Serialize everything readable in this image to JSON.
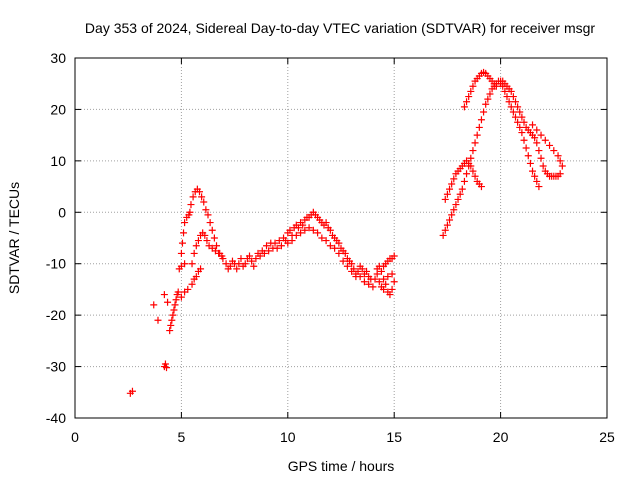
{
  "chart_data": {
    "type": "scatter",
    "title": "Day 353 of 2024, Sidereal Day-to-day VTEC variation (SDTVAR) for receiver msgr",
    "xlabel": "GPS time / hours",
    "ylabel": "SDTVAR / TECUs",
    "xlim": [
      0,
      25
    ],
    "ylim": [
      -40,
      30
    ],
    "xticks": [
      0,
      5,
      10,
      15,
      20,
      25
    ],
    "yticks": [
      -40,
      -30,
      -20,
      -10,
      0,
      10,
      20,
      30
    ],
    "grid": true,
    "marker": "+",
    "series": [
      {
        "name": "SDTVAR",
        "color": "#ff0000",
        "points": [
          [
            2.6,
            -35.2
          ],
          [
            2.7,
            -34.8
          ],
          [
            3.7,
            -18.0
          ],
          [
            3.9,
            -21.0
          ],
          [
            4.2,
            -30.0
          ],
          [
            4.25,
            -29.5
          ],
          [
            4.3,
            -30.2
          ],
          [
            4.2,
            -16.0
          ],
          [
            4.35,
            -17.5
          ],
          [
            4.45,
            -23.0
          ],
          [
            4.5,
            -22.0
          ],
          [
            4.55,
            -21.0
          ],
          [
            4.6,
            -20.0
          ],
          [
            4.65,
            -19.0
          ],
          [
            4.7,
            -18.0
          ],
          [
            4.75,
            -17.0
          ],
          [
            4.8,
            -16.0
          ],
          [
            4.85,
            -15.5
          ],
          [
            5.0,
            -16.5
          ],
          [
            5.15,
            -15.5
          ],
          [
            5.3,
            -15.0
          ],
          [
            4.9,
            -11.0
          ],
          [
            5.0,
            -10.5
          ],
          [
            5.15,
            -10.0
          ],
          [
            5.0,
            -8.0
          ],
          [
            5.05,
            -6.0
          ],
          [
            5.1,
            -4.0
          ],
          [
            5.15,
            -2.0
          ],
          [
            5.25,
            -1.0
          ],
          [
            5.35,
            -0.5
          ],
          [
            5.4,
            0.0
          ],
          [
            5.45,
            1.5
          ],
          [
            5.55,
            3.0
          ],
          [
            5.65,
            4.0
          ],
          [
            5.75,
            4.5
          ],
          [
            5.85,
            4.0
          ],
          [
            5.95,
            3.0
          ],
          [
            6.05,
            2.0
          ],
          [
            6.15,
            0.5
          ],
          [
            6.25,
            -0.5
          ],
          [
            6.35,
            -2.0
          ],
          [
            6.45,
            -3.5
          ],
          [
            6.55,
            -5.0
          ],
          [
            6.65,
            -6.5
          ],
          [
            6.8,
            -8.0
          ],
          [
            6.95,
            -9.0
          ],
          [
            5.5,
            -14.0
          ],
          [
            5.6,
            -13.0
          ],
          [
            5.7,
            -12.5
          ],
          [
            5.8,
            -11.5
          ],
          [
            5.9,
            -11.0
          ],
          [
            5.5,
            -10.0
          ],
          [
            5.6,
            -8.0
          ],
          [
            5.7,
            -6.5
          ],
          [
            5.8,
            -5.5
          ],
          [
            5.9,
            -4.5
          ],
          [
            6.0,
            -4.0
          ],
          [
            6.1,
            -4.5
          ],
          [
            6.2,
            -5.5
          ],
          [
            6.3,
            -6.5
          ],
          [
            6.45,
            -7.0
          ],
          [
            6.6,
            -7.5
          ],
          [
            6.75,
            -8.0
          ],
          [
            6.9,
            -8.5
          ],
          [
            7.1,
            -10.0
          ],
          [
            7.2,
            -11.0
          ],
          [
            7.3,
            -10.5
          ],
          [
            7.4,
            -9.5
          ],
          [
            7.5,
            -10.0
          ],
          [
            7.6,
            -11.0
          ],
          [
            7.7,
            -10.0
          ],
          [
            7.8,
            -9.0
          ],
          [
            7.9,
            -10.5
          ],
          [
            8.0,
            -10.0
          ],
          [
            8.1,
            -9.0
          ],
          [
            8.2,
            -8.5
          ],
          [
            8.3,
            -9.5
          ],
          [
            8.4,
            -10.5
          ],
          [
            8.5,
            -9.0
          ],
          [
            8.6,
            -8.0
          ],
          [
            8.7,
            -8.5
          ],
          [
            8.8,
            -7.5
          ],
          [
            8.9,
            -8.0
          ],
          [
            9.0,
            -6.5
          ],
          [
            9.1,
            -7.5
          ],
          [
            9.2,
            -6.0
          ],
          [
            9.3,
            -7.0
          ],
          [
            9.4,
            -6.0
          ],
          [
            9.5,
            -7.0
          ],
          [
            9.6,
            -5.5
          ],
          [
            9.7,
            -6.5
          ],
          [
            9.8,
            -5.0
          ],
          [
            9.9,
            -5.5
          ],
          [
            10.0,
            -4.0
          ],
          [
            10.1,
            -3.5
          ],
          [
            10.2,
            -4.5
          ],
          [
            10.3,
            -3.0
          ],
          [
            10.4,
            -2.5
          ],
          [
            10.5,
            -3.0
          ],
          [
            10.6,
            -2.0
          ],
          [
            10.7,
            -2.5
          ],
          [
            10.8,
            -1.5
          ],
          [
            10.9,
            -1.0
          ],
          [
            10.0,
            -6.0
          ],
          [
            10.2,
            -5.5
          ],
          [
            10.4,
            -4.5
          ],
          [
            10.6,
            -4.0
          ],
          [
            10.8,
            -3.5
          ],
          [
            11.0,
            -3.0
          ],
          [
            11.2,
            -3.5
          ],
          [
            11.4,
            -4.0
          ],
          [
            11.6,
            -5.0
          ],
          [
            11.8,
            -5.5
          ],
          [
            11.0,
            -1.0
          ],
          [
            11.1,
            -0.5
          ],
          [
            11.2,
            0.0
          ],
          [
            11.3,
            -0.5
          ],
          [
            11.4,
            -1.0
          ],
          [
            11.5,
            -1.5
          ],
          [
            11.6,
            -2.0
          ],
          [
            11.7,
            -2.5
          ],
          [
            11.8,
            -2.0
          ],
          [
            11.9,
            -3.0
          ],
          [
            12.0,
            -3.5
          ],
          [
            12.1,
            -4.5
          ],
          [
            12.2,
            -5.0
          ],
          [
            12.3,
            -5.5
          ],
          [
            12.4,
            -6.0
          ],
          [
            12.5,
            -7.0
          ],
          [
            12.6,
            -7.5
          ],
          [
            12.7,
            -8.0
          ],
          [
            12.8,
            -9.0
          ],
          [
            12.9,
            -9.5
          ],
          [
            12.0,
            -6.5
          ],
          [
            12.2,
            -7.0
          ],
          [
            12.4,
            -8.0
          ],
          [
            12.6,
            -9.5
          ],
          [
            12.8,
            -10.5
          ],
          [
            13.0,
            -11.5
          ],
          [
            13.2,
            -12.0
          ],
          [
            13.4,
            -12.5
          ],
          [
            13.6,
            -13.5
          ],
          [
            13.8,
            -14.0
          ],
          [
            13.0,
            -10.0
          ],
          [
            13.1,
            -11.0
          ],
          [
            13.2,
            -12.5
          ],
          [
            13.3,
            -11.5
          ],
          [
            13.4,
            -10.5
          ],
          [
            13.5,
            -11.0
          ],
          [
            13.6,
            -12.0
          ],
          [
            13.7,
            -11.5
          ],
          [
            13.8,
            -12.5
          ],
          [
            13.9,
            -13.0
          ],
          [
            14.0,
            -14.5
          ],
          [
            14.1,
            -13.0
          ],
          [
            14.2,
            -12.0
          ],
          [
            14.3,
            -13.5
          ],
          [
            14.4,
            -14.5
          ],
          [
            14.5,
            -15.0
          ],
          [
            14.6,
            -14.0
          ],
          [
            14.7,
            -15.5
          ],
          [
            14.8,
            -16.0
          ],
          [
            14.9,
            -15.0
          ],
          [
            14.2,
            -11.0
          ],
          [
            14.3,
            -10.5
          ],
          [
            14.4,
            -11.5
          ],
          [
            14.5,
            -10.5
          ],
          [
            14.6,
            -10.0
          ],
          [
            14.7,
            -9.5
          ],
          [
            14.8,
            -9.0
          ],
          [
            14.9,
            -9.0
          ],
          [
            15.0,
            -8.5
          ],
          [
            14.5,
            -13.0
          ],
          [
            14.7,
            -12.5
          ],
          [
            14.9,
            -12.0
          ],
          [
            15.0,
            -13.5
          ],
          [
            17.3,
            -4.5
          ],
          [
            17.4,
            -3.5
          ],
          [
            17.5,
            -2.5
          ],
          [
            17.6,
            -1.5
          ],
          [
            17.7,
            -0.5
          ],
          [
            17.8,
            0.5
          ],
          [
            17.9,
            1.5
          ],
          [
            18.0,
            2.5
          ],
          [
            18.1,
            3.5
          ],
          [
            18.2,
            4.5
          ],
          [
            18.3,
            6.0
          ],
          [
            18.4,
            7.5
          ],
          [
            18.5,
            9.0
          ],
          [
            18.6,
            10.5
          ],
          [
            18.7,
            12.0
          ],
          [
            18.8,
            13.5
          ],
          [
            18.9,
            15.0
          ],
          [
            19.0,
            16.5
          ],
          [
            19.1,
            18.0
          ],
          [
            19.2,
            19.5
          ],
          [
            19.3,
            21.0
          ],
          [
            19.4,
            22.0
          ],
          [
            19.5,
            23.0
          ],
          [
            19.6,
            24.0
          ],
          [
            19.7,
            24.5
          ],
          [
            19.8,
            25.0
          ],
          [
            19.9,
            25.5
          ],
          [
            20.0,
            25.0
          ],
          [
            20.1,
            24.5
          ],
          [
            20.2,
            23.5
          ],
          [
            20.3,
            22.5
          ],
          [
            20.4,
            21.5
          ],
          [
            20.5,
            20.5
          ],
          [
            20.6,
            19.5
          ],
          [
            20.7,
            18.5
          ],
          [
            20.8,
            17.5
          ],
          [
            20.9,
            16.5
          ],
          [
            21.0,
            15.5
          ],
          [
            21.1,
            14.0
          ],
          [
            21.2,
            12.5
          ],
          [
            21.3,
            11.0
          ],
          [
            21.4,
            9.5
          ],
          [
            21.5,
            8.0
          ],
          [
            21.6,
            7.0
          ],
          [
            21.7,
            6.0
          ],
          [
            21.8,
            5.0
          ],
          [
            17.4,
            2.5
          ],
          [
            17.5,
            3.5
          ],
          [
            17.6,
            4.5
          ],
          [
            17.7,
            5.5
          ],
          [
            17.8,
            6.5
          ],
          [
            17.9,
            7.5
          ],
          [
            18.0,
            8.0
          ],
          [
            18.1,
            8.5
          ],
          [
            18.2,
            9.0
          ],
          [
            18.3,
            9.5
          ],
          [
            18.4,
            10.0
          ],
          [
            18.5,
            9.5
          ],
          [
            18.6,
            9.0
          ],
          [
            18.7,
            8.0
          ],
          [
            18.8,
            7.0
          ],
          [
            18.9,
            6.0
          ],
          [
            19.0,
            5.5
          ],
          [
            19.1,
            5.0
          ],
          [
            18.3,
            20.5
          ],
          [
            18.4,
            21.5
          ],
          [
            18.5,
            22.5
          ],
          [
            18.6,
            23.5
          ],
          [
            18.7,
            24.5
          ],
          [
            18.8,
            25.5
          ],
          [
            18.9,
            26.0
          ],
          [
            19.0,
            26.5
          ],
          [
            19.1,
            27.0
          ],
          [
            19.2,
            27.2
          ],
          [
            19.3,
            27.0
          ],
          [
            19.4,
            26.5
          ],
          [
            19.5,
            26.0
          ],
          [
            19.6,
            25.5
          ],
          [
            19.7,
            25.0
          ],
          [
            19.8,
            24.5
          ],
          [
            20.0,
            25.5
          ],
          [
            20.1,
            25.5
          ],
          [
            20.2,
            25.0
          ],
          [
            20.3,
            24.5
          ],
          [
            20.4,
            24.0
          ],
          [
            20.5,
            23.5
          ],
          [
            20.6,
            22.5
          ],
          [
            20.7,
            21.5
          ],
          [
            20.8,
            20.5
          ],
          [
            20.9,
            19.5
          ],
          [
            21.0,
            18.5
          ],
          [
            21.1,
            17.5
          ],
          [
            21.2,
            16.5
          ],
          [
            21.3,
            16.0
          ],
          [
            21.4,
            15.5
          ],
          [
            21.5,
            15.0
          ],
          [
            21.6,
            14.5
          ],
          [
            21.7,
            13.5
          ],
          [
            21.8,
            12.0
          ],
          [
            21.9,
            10.5
          ],
          [
            22.0,
            9.0
          ],
          [
            22.1,
            8.0
          ],
          [
            22.2,
            7.5
          ],
          [
            22.3,
            7.0
          ],
          [
            22.4,
            7.0
          ],
          [
            22.5,
            7.0
          ],
          [
            22.6,
            7.0
          ],
          [
            22.7,
            7.0
          ],
          [
            22.8,
            7.5
          ],
          [
            21.5,
            17.0
          ],
          [
            21.7,
            16.0
          ],
          [
            21.9,
            15.0
          ],
          [
            22.1,
            14.0
          ],
          [
            22.3,
            13.0
          ],
          [
            22.5,
            12.0
          ],
          [
            22.7,
            11.0
          ],
          [
            22.8,
            10.0
          ],
          [
            22.9,
            9.0
          ]
        ]
      }
    ]
  }
}
